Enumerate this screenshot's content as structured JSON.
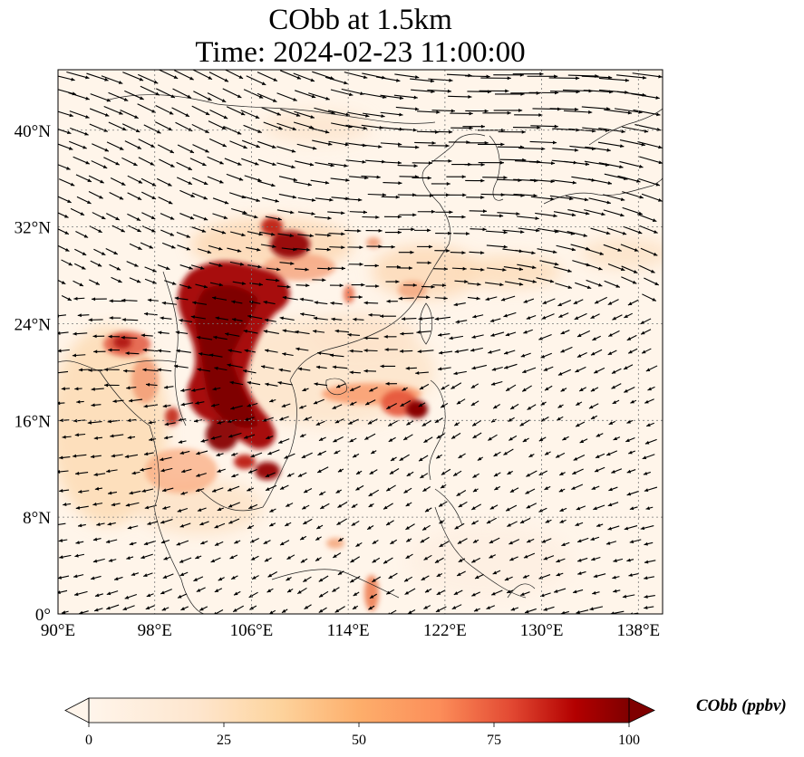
{
  "figure": {
    "title_line1": "CObb at 1.5km",
    "title_line2": "Time: 2024-02-23 11:00:00"
  },
  "map": {
    "lon_range": [
      90,
      140
    ],
    "lat_range": [
      0,
      45
    ],
    "lon_ticks": [
      90,
      98,
      106,
      114,
      122,
      130,
      138
    ],
    "lat_ticks": [
      0,
      8,
      16,
      24,
      32,
      40
    ],
    "lon_tick_labels": [
      "90°E",
      "98°E",
      "106°E",
      "114°E",
      "122°E",
      "130°E",
      "138°E"
    ],
    "lat_tick_labels": [
      "0°",
      "8°N",
      "16°N",
      "24°N",
      "32°N",
      "40°N"
    ],
    "gridlines": true,
    "field_variable": "CObb",
    "overlay": "wind vectors"
  },
  "colorbar": {
    "label": "CObb (ppbv)",
    "min": 0,
    "max": 100,
    "ticks": [
      0,
      25,
      50,
      75,
      100
    ],
    "tick_labels": [
      "0",
      "25",
      "50",
      "75",
      "100"
    ],
    "extend": "both",
    "colors": [
      "#fff5eb",
      "#fdd49e",
      "#fdae6b",
      "#fc8d59",
      "#e34a33",
      "#b30000",
      "#7f0000"
    ]
  },
  "chart_data": {
    "type": "heatmap",
    "xlabel": "",
    "ylabel": "",
    "xlim": [
      90,
      140
    ],
    "ylim": [
      0,
      45
    ],
    "plumes_ppbv": [
      {
        "lon": 103.5,
        "lat": 25.5,
        "value": 100
      },
      {
        "lon": 103.5,
        "lat": 20.5,
        "value": 100
      },
      {
        "lon": 105.5,
        "lat": 16.0,
        "value": 100
      },
      {
        "lon": 107.5,
        "lat": 12.0,
        "value": 95
      },
      {
        "lon": 109.5,
        "lat": 31.0,
        "value": 90
      },
      {
        "lon": 95.5,
        "lat": 22.5,
        "value": 70
      },
      {
        "lon": 118.5,
        "lat": 17.0,
        "value": 85
      },
      {
        "lon": 114.0,
        "lat": 18.5,
        "value": 45
      },
      {
        "lon": 116.0,
        "lat": 31.5,
        "value": 35
      },
      {
        "lon": 124.0,
        "lat": 28.0,
        "value": 30
      },
      {
        "lon": 95.0,
        "lat": 14.0,
        "value": 25
      }
    ]
  }
}
